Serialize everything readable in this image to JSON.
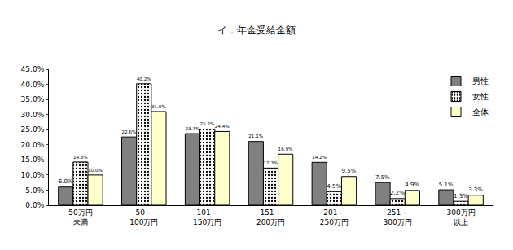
{
  "chart_data": {
    "type": "bar",
    "title": "イ．年金受給金額",
    "categories": [
      "50万円\n未満",
      "50～\n100万円",
      "101～\n150万円",
      "151～\n200万円",
      "201～\n250万円",
      "251～\n300万円",
      "300万円\n以上"
    ],
    "series": [
      {
        "name": "男性",
        "color": "#808080",
        "marker": "solid",
        "values": [
          6.0,
          22.6,
          23.7,
          21.1,
          14.2,
          7.5,
          5.1
        ],
        "value_labels": [
          "6.0%",
          "22.6%",
          "23.7%",
          "21.1%",
          "14.2%",
          "7.5%",
          "5.1%"
        ]
      },
      {
        "name": "女性",
        "color": "#ffffff",
        "marker": "dotted",
        "values": [
          14.3,
          40.2,
          25.2,
          12.3,
          4.5,
          2.2,
          1.3
        ],
        "value_labels": [
          "14.3%",
          "40.2%",
          "25.2%",
          "12.3%",
          "4.5%",
          "2.2%",
          "1.3%"
        ]
      },
      {
        "name": "全体",
        "color": "#ffffcc",
        "marker": "solid",
        "values": [
          10.0,
          31.0,
          24.4,
          16.9,
          9.5,
          4.9,
          3.3
        ],
        "value_labels": [
          "10.0%",
          "31.0%",
          "24.4%",
          "16.9%",
          "9.5%",
          "4.9%",
          "3.3%"
        ]
      }
    ],
    "ylim": [
      0,
      45
    ],
    "yticks": [
      {
        "value": 0,
        "label": "0.0%"
      },
      {
        "value": 5,
        "label": "5.0%"
      },
      {
        "value": 10,
        "label": "10.0%"
      },
      {
        "value": 15,
        "label": "15.0%"
      },
      {
        "value": 20,
        "label": "20.0%"
      },
      {
        "value": 25,
        "label": "25.0%"
      },
      {
        "value": 30,
        "label": "30.0%"
      },
      {
        "value": 35,
        "label": "35.0%"
      },
      {
        "value": 40,
        "label": "40.0%"
      },
      {
        "value": 45,
        "label": "45.0%"
      }
    ],
    "grid": false,
    "legend": "upper right",
    "data_labels": true
  }
}
